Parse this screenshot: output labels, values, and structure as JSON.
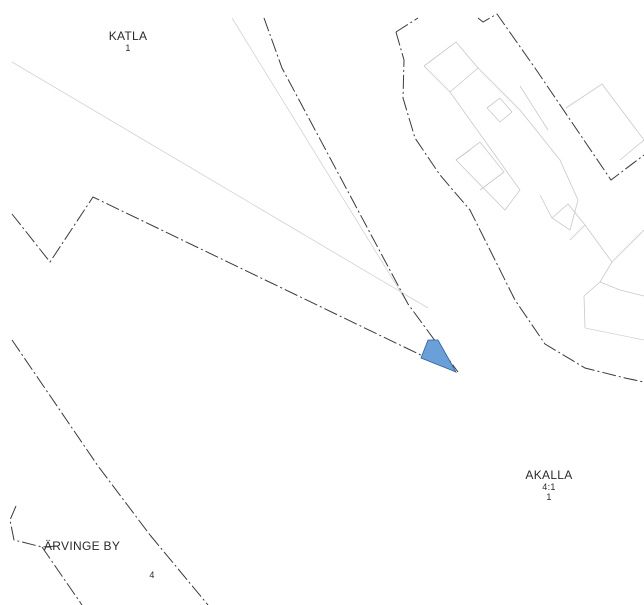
{
  "labels": {
    "katla": {
      "name": "KATLA",
      "number": "1"
    },
    "akalla": {
      "name": "AKALLA",
      "number": "4:1",
      "sub_number": "1"
    },
    "arvinge": {
      "name": "ÄRVINGE BY",
      "number": "4"
    }
  },
  "colors": {
    "highlight_fill": "#6a9fd8",
    "boundary": "#3a3a3a",
    "building_outline": "#c8c8c8"
  }
}
